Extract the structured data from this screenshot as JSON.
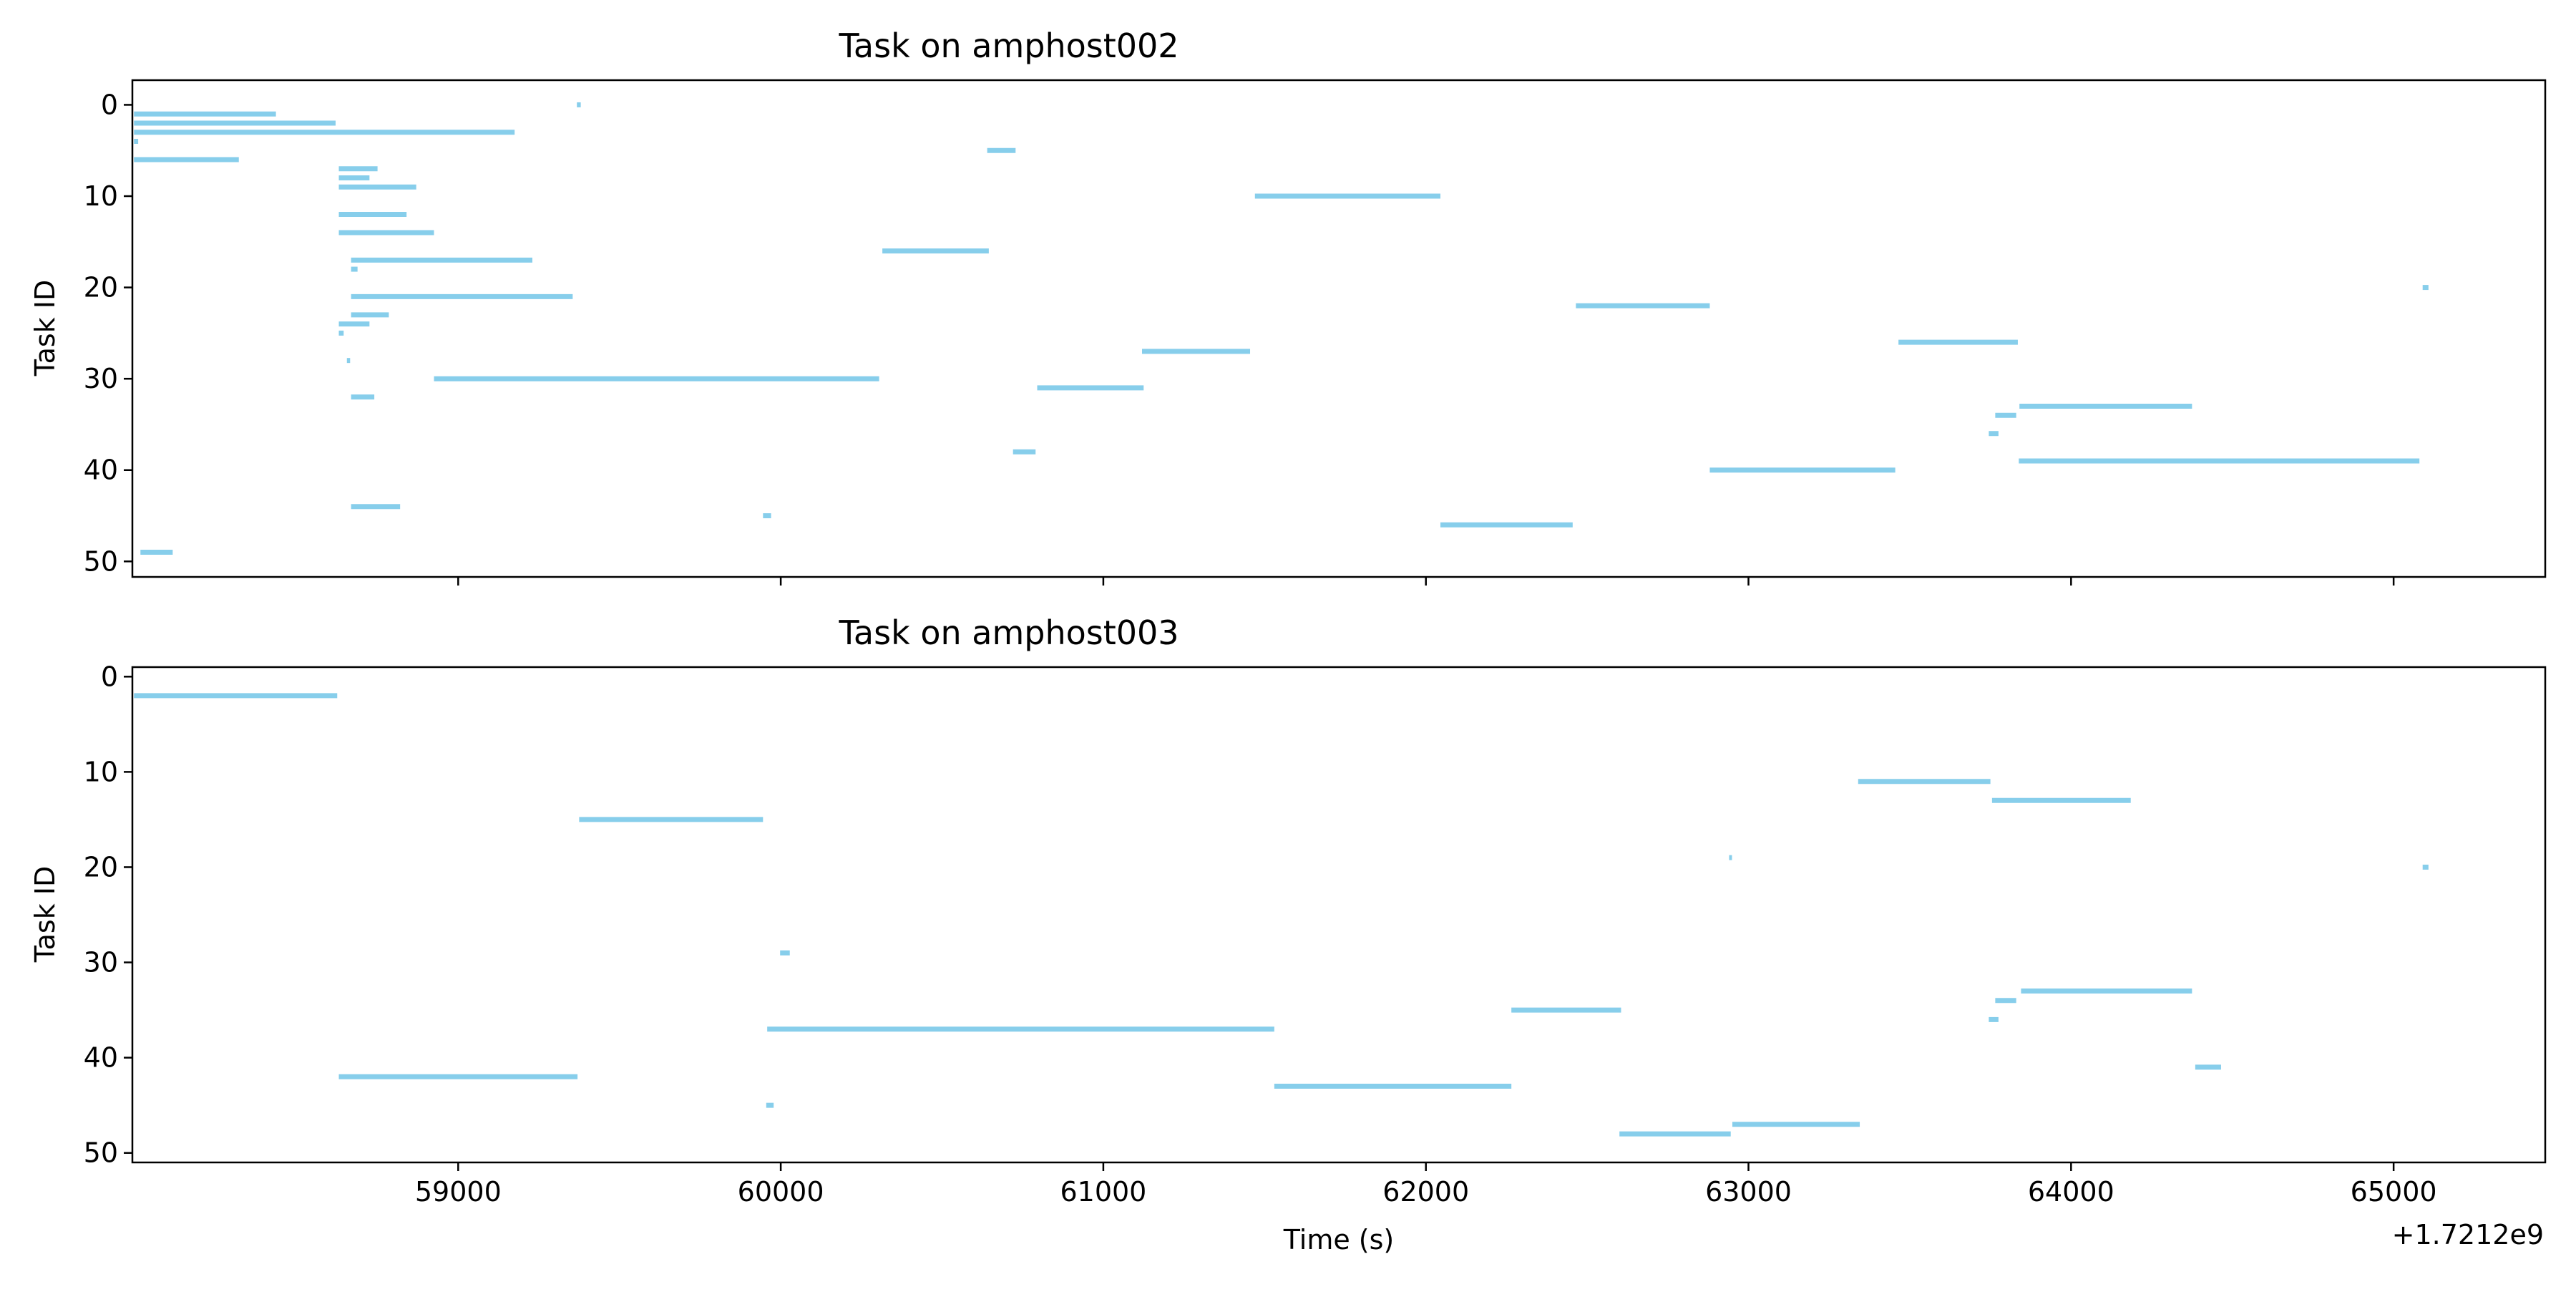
{
  "chart_data": [
    {
      "type": "gantt",
      "title": "Task on amphost002",
      "xlabel": "",
      "ylabel": "Task ID",
      "xlim": [
        57990,
        65470
      ],
      "ylim": [
        51.7,
        -2.7
      ],
      "y_inverted": true,
      "x_ticks": [
        59000,
        60000,
        61000,
        62000,
        63000,
        64000,
        65000
      ],
      "x_tick_labels": [],
      "y_ticks": [
        0,
        10,
        20,
        30,
        40,
        50
      ],
      "y_tick_labels": [
        "0",
        "10",
        "20",
        "30",
        "40",
        "50"
      ],
      "bar_color": "#87CEEB",
      "grid": false,
      "tasks": [
        {
          "task_id": 0,
          "start": 59368,
          "end": 59380
        },
        {
          "task_id": 1,
          "start": 57995,
          "end": 58435
        },
        {
          "task_id": 2,
          "start": 57995,
          "end": 58620
        },
        {
          "task_id": 3,
          "start": 57995,
          "end": 59175
        },
        {
          "task_id": 4,
          "start": 57995,
          "end": 58008
        },
        {
          "task_id": 5,
          "start": 60640,
          "end": 60728
        },
        {
          "task_id": 6,
          "start": 57995,
          "end": 58320
        },
        {
          "task_id": 7,
          "start": 58630,
          "end": 58750
        },
        {
          "task_id": 8,
          "start": 58630,
          "end": 58725
        },
        {
          "task_id": 9,
          "start": 58630,
          "end": 58870
        },
        {
          "task_id": 10,
          "start": 61470,
          "end": 62045
        },
        {
          "task_id": 12,
          "start": 58630,
          "end": 58840
        },
        {
          "task_id": 14,
          "start": 58630,
          "end": 58925
        },
        {
          "task_id": 16,
          "start": 60315,
          "end": 60645
        },
        {
          "task_id": 17,
          "start": 58668,
          "end": 59230
        },
        {
          "task_id": 18,
          "start": 58668,
          "end": 58688
        },
        {
          "task_id": 20,
          "start": 65090,
          "end": 65108
        },
        {
          "task_id": 21,
          "start": 58668,
          "end": 59355
        },
        {
          "task_id": 22,
          "start": 62465,
          "end": 62880
        },
        {
          "task_id": 23,
          "start": 58668,
          "end": 58785
        },
        {
          "task_id": 24,
          "start": 58630,
          "end": 58725
        },
        {
          "task_id": 25,
          "start": 58630,
          "end": 58645
        },
        {
          "task_id": 26,
          "start": 63465,
          "end": 63835
        },
        {
          "task_id": 27,
          "start": 61120,
          "end": 61455
        },
        {
          "task_id": 28,
          "start": 58655,
          "end": 58665
        },
        {
          "task_id": 30,
          "start": 58925,
          "end": 60305
        },
        {
          "task_id": 31,
          "start": 60795,
          "end": 61125
        },
        {
          "task_id": 32,
          "start": 58668,
          "end": 58740
        },
        {
          "task_id": 33,
          "start": 63840,
          "end": 64375
        },
        {
          "task_id": 34,
          "start": 63765,
          "end": 63830
        },
        {
          "task_id": 36,
          "start": 63745,
          "end": 63775
        },
        {
          "task_id": 38,
          "start": 60720,
          "end": 60790
        },
        {
          "task_id": 39,
          "start": 63838,
          "end": 65080
        },
        {
          "task_id": 40,
          "start": 62880,
          "end": 63455
        },
        {
          "task_id": 44,
          "start": 58668,
          "end": 58820
        },
        {
          "task_id": 45,
          "start": 59945,
          "end": 59970
        },
        {
          "task_id": 46,
          "start": 62045,
          "end": 62455
        },
        {
          "task_id": 49,
          "start": 58015,
          "end": 58115
        }
      ]
    },
    {
      "type": "gantt",
      "title": "Task on amphost003",
      "xlabel": "Time (s)",
      "ylabel": "Task ID",
      "x_offset_text": "+1.7212e9",
      "xlim": [
        57990,
        65470
      ],
      "ylim": [
        51.0,
        -1.0
      ],
      "y_inverted": true,
      "x_ticks": [
        59000,
        60000,
        61000,
        62000,
        63000,
        64000,
        65000
      ],
      "x_tick_labels": [
        "59000",
        "60000",
        "61000",
        "62000",
        "63000",
        "64000",
        "65000"
      ],
      "y_ticks": [
        0,
        10,
        20,
        30,
        40,
        50
      ],
      "y_tick_labels": [
        "0",
        "10",
        "20",
        "30",
        "40",
        "50"
      ],
      "bar_color": "#87CEEB",
      "grid": false,
      "tasks": [
        {
          "task_id": 2,
          "start": 57995,
          "end": 58625
        },
        {
          "task_id": 11,
          "start": 63340,
          "end": 63750
        },
        {
          "task_id": 13,
          "start": 63755,
          "end": 64185
        },
        {
          "task_id": 15,
          "start": 59375,
          "end": 59945
        },
        {
          "task_id": 19,
          "start": 62940,
          "end": 62948
        },
        {
          "task_id": 20,
          "start": 65090,
          "end": 65108
        },
        {
          "task_id": 29,
          "start": 59998,
          "end": 60028
        },
        {
          "task_id": 33,
          "start": 63845,
          "end": 64375
        },
        {
          "task_id": 34,
          "start": 63765,
          "end": 63830
        },
        {
          "task_id": 35,
          "start": 62265,
          "end": 62605
        },
        {
          "task_id": 36,
          "start": 63745,
          "end": 63775
        },
        {
          "task_id": 37,
          "start": 59958,
          "end": 61530
        },
        {
          "task_id": 41,
          "start": 64385,
          "end": 64465
        },
        {
          "task_id": 42,
          "start": 58630,
          "end": 59370
        },
        {
          "task_id": 43,
          "start": 61530,
          "end": 62265
        },
        {
          "task_id": 45,
          "start": 59955,
          "end": 59978
        },
        {
          "task_id": 47,
          "start": 62950,
          "end": 63345
        },
        {
          "task_id": 48,
          "start": 62600,
          "end": 62945
        }
      ]
    }
  ]
}
